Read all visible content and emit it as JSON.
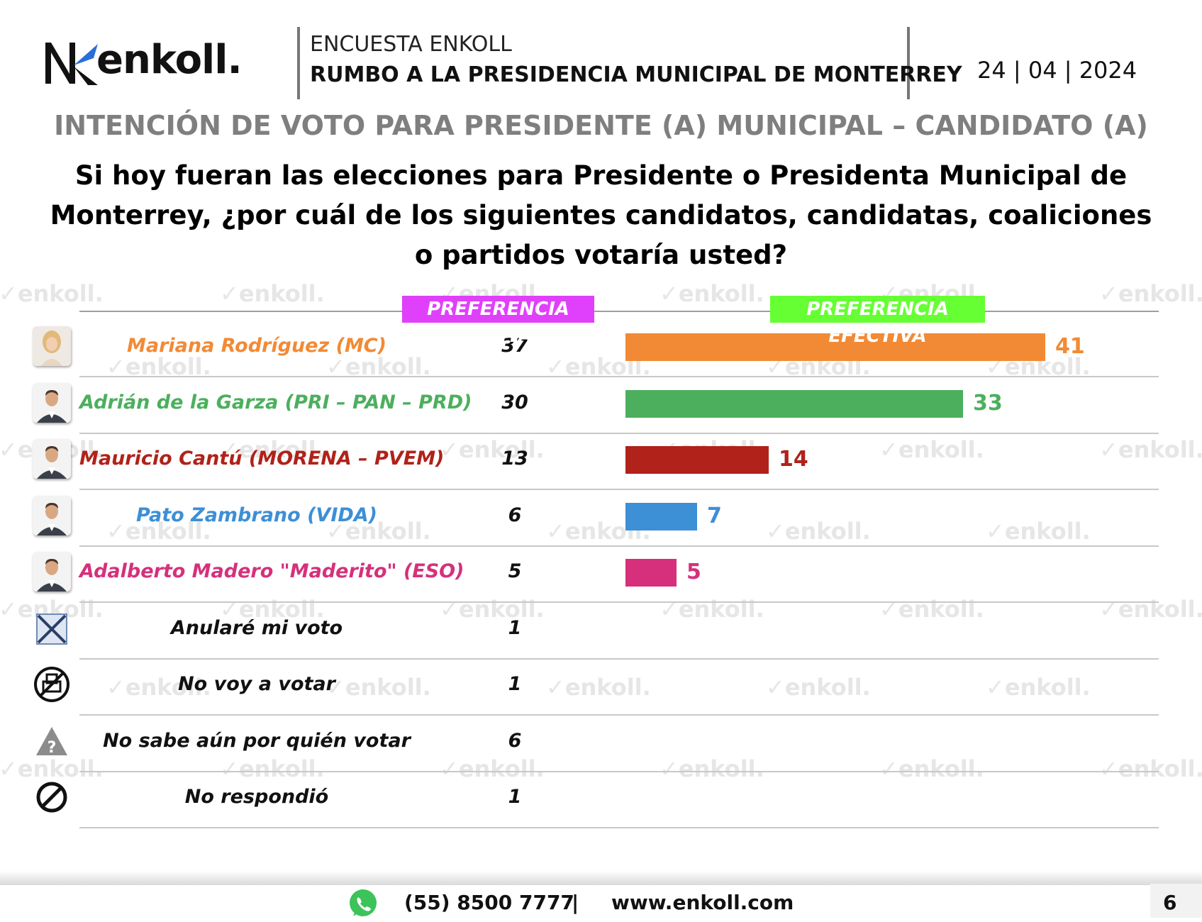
{
  "brand": {
    "logo_text": "enkoll.",
    "watermark": "enkoll."
  },
  "header": {
    "survey_label": "ENCUESTA ENKOLL",
    "survey_title": "RUMBO A LA PRESIDENCIA MUNICIPAL DE MONTERREY",
    "date": "24 | 04 | 2024"
  },
  "section_title": "INTENCIÓN DE VOTO PARA PRESIDENTE (A) MUNICIPAL – CANDIDATO (A)",
  "question": "Si hoy fueran las elecciones para Presidente o Presidenta Municipal de Monterrey, ¿por cuál de los siguientes candidatos, candidatas, coaliciones o partidos votaría usted?",
  "chart_data": {
    "type": "bar",
    "orientation": "horizontal",
    "column_headers": {
      "bruta": "PREFERENCIA BRUTA",
      "efectiva": "PREFERENCIA EFECTIVA"
    },
    "xlim": [
      0,
      41
    ],
    "rows": [
      {
        "label": "Mariana Rodríguez (MC)",
        "bruta": "37",
        "efectiva": 41,
        "color": "#f28a35",
        "icon": "candidate-photo-woman"
      },
      {
        "label": "Adrián de la Garza (PRI – PAN – PRD)",
        "bruta": "30",
        "efectiva": 33,
        "color": "#4caf5e",
        "icon": "candidate-photo-man"
      },
      {
        "label": "Mauricio Cantú (MORENA – PVEM)",
        "bruta": "13",
        "efectiva": 14,
        "color": "#b0221a",
        "icon": "candidate-photo-man"
      },
      {
        "label": "Pato Zambrano (VIDA)",
        "bruta": "6",
        "efectiva": 7,
        "color": "#3d8fd6",
        "icon": "candidate-photo-man"
      },
      {
        "label": "Adalberto Madero \"Maderito\" (ESO)",
        "bruta": "5",
        "efectiva": 5,
        "color": "#d6307c",
        "icon": "candidate-photo-man"
      },
      {
        "label": "Anularé mi voto",
        "bruta": "1",
        "efectiva": null,
        "color": "#111111",
        "icon": "annulled-ballot-icon"
      },
      {
        "label": "No voy a votar",
        "bruta": "1",
        "efectiva": null,
        "color": "#111111",
        "icon": "no-vote-icon"
      },
      {
        "label": "No sabe aún por quién votar",
        "bruta": "6",
        "efectiva": null,
        "color": "#111111",
        "icon": "warning-question-icon"
      },
      {
        "label": "No respondió",
        "bruta": "1",
        "efectiva": null,
        "color": "#111111",
        "icon": "prohibited-icon"
      }
    ]
  },
  "footer": {
    "whatsapp_icon": "whatsapp-icon",
    "phone": "(55) 8500 7777",
    "separator": "|",
    "website": "www.enkoll.com",
    "page_number": "6"
  }
}
